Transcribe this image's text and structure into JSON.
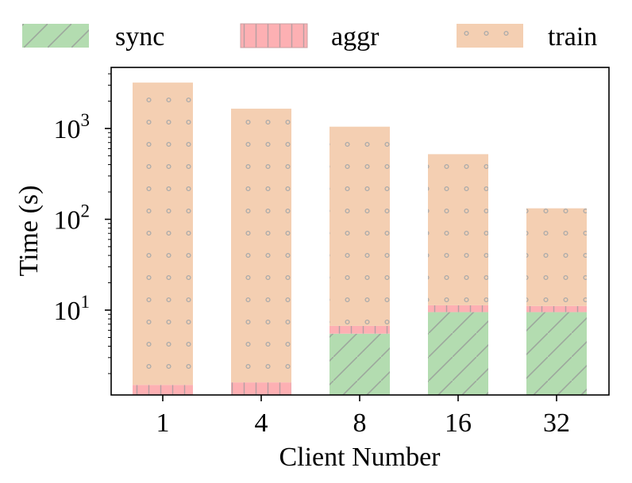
{
  "chart_data": {
    "type": "bar",
    "stacked": true,
    "yscale": "log",
    "categories": [
      "1",
      "4",
      "8",
      "16",
      "32"
    ],
    "series": [
      {
        "name": "sync",
        "values": [
          0,
          0,
          5.5,
          9.5,
          9.5
        ],
        "color": "#b3dcb0",
        "hatch": "diagonal"
      },
      {
        "name": "aggr",
        "values": [
          1.5,
          1.6,
          1.2,
          1.8,
          1.6
        ],
        "color": "#fdb0b3",
        "hatch": "grid"
      },
      {
        "name": "train",
        "values": [
          3200,
          1650,
          1040,
          510,
          121
        ],
        "color": "#f4cfb2",
        "hatch": "dots"
      }
    ],
    "yticks": [
      {
        "base": "10",
        "exp": "1",
        "value": 10
      },
      {
        "base": "10",
        "exp": "2",
        "value": 100
      },
      {
        "base": "10",
        "exp": "3",
        "value": 1000
      }
    ],
    "ylim": [
      1.15,
      4000
    ],
    "xlabel": "Client Number",
    "ylabel": "Time (s)",
    "legend_position": "top",
    "grid": false
  }
}
